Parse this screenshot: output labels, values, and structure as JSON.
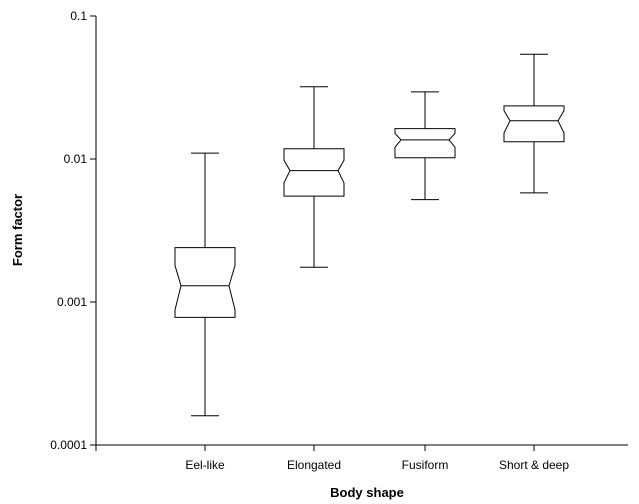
{
  "chart_data": {
    "type": "boxplot",
    "xlabel": "Body shape",
    "ylabel": "Form factor",
    "yscale": "log",
    "ylim": [
      0.0001,
      0.1
    ],
    "yticks": [
      {
        "value": 0.0001,
        "label": "0.0001"
      },
      {
        "value": 0.001,
        "label": "0.001"
      },
      {
        "value": 0.01,
        "label": "0.01"
      },
      {
        "value": 0.1,
        "label": "0.1"
      }
    ],
    "grid": false,
    "notched": true,
    "categories": [
      "Eel-like",
      "Elongated",
      "Fusiform",
      "Short & deep"
    ],
    "boxes": [
      {
        "category": "Eel-like",
        "whisker_low": 0.00016,
        "q1": 0.00078,
        "median": 0.0013,
        "q3": 0.0024,
        "whisker_high": 0.011,
        "notch_low": 0.00088,
        "notch_high": 0.0018
      },
      {
        "category": "Elongated",
        "whisker_low": 0.00175,
        "q1": 0.0055,
        "median": 0.0083,
        "q3": 0.0118,
        "whisker_high": 0.032,
        "notch_low": 0.0068,
        "notch_high": 0.0098
      },
      {
        "category": "Fusiform",
        "whisker_low": 0.0052,
        "q1": 0.0102,
        "median": 0.0136,
        "q3": 0.0163,
        "whisker_high": 0.0295,
        "notch_low": 0.0121,
        "notch_high": 0.0151
      },
      {
        "category": "Short & deep",
        "whisker_low": 0.0058,
        "q1": 0.0132,
        "median": 0.0185,
        "q3": 0.0235,
        "whisker_high": 0.054,
        "notch_low": 0.0152,
        "notch_high": 0.0218
      }
    ]
  }
}
